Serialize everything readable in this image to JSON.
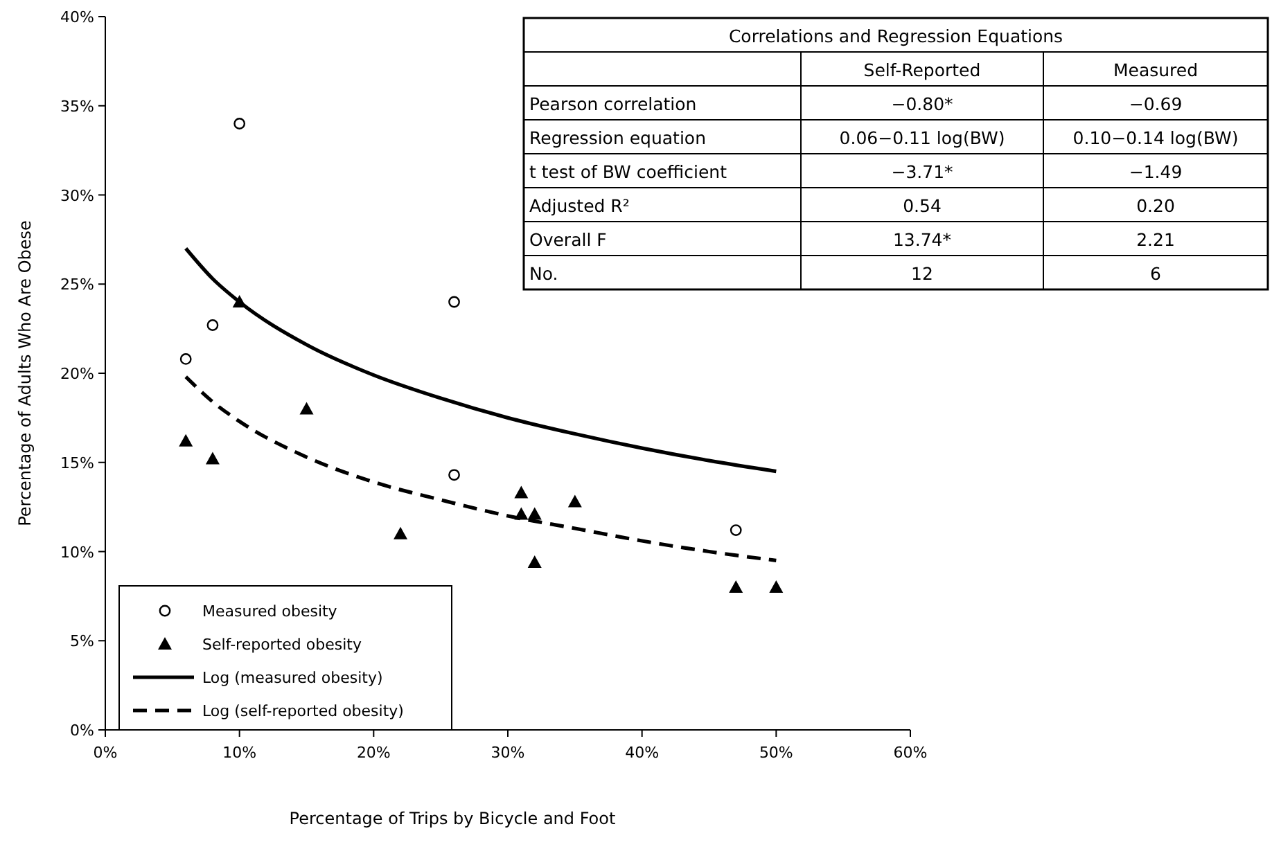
{
  "chart_data": {
    "type": "scatter",
    "xlabel": "Percentage of Trips by Bicycle and Foot",
    "ylabel": "Percentage of Adults Who Are Obese",
    "xlim": [
      0,
      60
    ],
    "ylim": [
      0,
      40
    ],
    "xticks": [
      {
        "value": 0,
        "label": "0%"
      },
      {
        "value": 10,
        "label": "10%"
      },
      {
        "value": 20,
        "label": "20%"
      },
      {
        "value": 30,
        "label": "30%"
      },
      {
        "value": 40,
        "label": "40%"
      },
      {
        "value": 50,
        "label": "50%"
      },
      {
        "value": 60,
        "label": "60%"
      }
    ],
    "yticks": [
      {
        "value": 0,
        "label": "0%"
      },
      {
        "value": 5,
        "label": "5%"
      },
      {
        "value": 10,
        "label": "10%"
      },
      {
        "value": 15,
        "label": "15%"
      },
      {
        "value": 20,
        "label": "20%"
      },
      {
        "value": 25,
        "label": "25%"
      },
      {
        "value": 30,
        "label": "30%"
      },
      {
        "value": 35,
        "label": "35%"
      },
      {
        "value": 40,
        "label": "40%"
      }
    ],
    "grid": false,
    "legend": "bottom left",
    "series": [
      {
        "name": "Measured obesity",
        "marker": "circle",
        "color": "#000000",
        "x": [
          6,
          8,
          10,
          26,
          26,
          47
        ],
        "values": [
          20.8,
          22.7,
          34,
          24,
          14.3,
          11.2
        ]
      },
      {
        "name": "Self-reported obesity",
        "marker": "triangle",
        "color": "#000000",
        "x": [
          6,
          8,
          10,
          15,
          22,
          31,
          31,
          32,
          32,
          35,
          47,
          50
        ],
        "values": [
          16.2,
          15.2,
          24,
          18,
          11,
          13.3,
          12.1,
          12.1,
          9.4,
          12.8,
          8,
          8
        ]
      },
      {
        "name": "Log (measured obesity)",
        "type": "line",
        "line_style": "solid",
        "color": "#000000",
        "x": [
          6,
          8,
          10,
          15,
          20,
          25,
          30,
          35,
          40,
          45,
          50
        ],
        "values": [
          27,
          25.3,
          24,
          21.6,
          19.9,
          18.6,
          17.5,
          16.6,
          15.8,
          15.1,
          14.5
        ]
      },
      {
        "name": "Log (self-reported obesity)",
        "type": "line",
        "line_style": "dashed",
        "color": "#000000",
        "x": [
          6,
          8,
          10,
          15,
          20,
          25,
          30,
          35,
          40,
          45,
          50
        ],
        "values": [
          19.8,
          18.4,
          17.3,
          15.3,
          13.9,
          12.9,
          12,
          11.3,
          10.6,
          10,
          9.5
        ]
      }
    ],
    "annotations": [
      "Correlations and Regression Equations",
      "Self-Reported",
      "Measured",
      "Pearson correlation",
      "−0.80*",
      "−0.69",
      "Regression equation",
      "0.06−0.11 log(BW)",
      "0.10−0.14 log(BW)",
      "t test of BW coefficient",
      "−3.71*",
      "−1.49",
      "Adjusted R²",
      "0.54",
      "0.20",
      "Overall F",
      "13.74*",
      "2.21",
      "No.",
      "12",
      "6"
    ]
  }
}
